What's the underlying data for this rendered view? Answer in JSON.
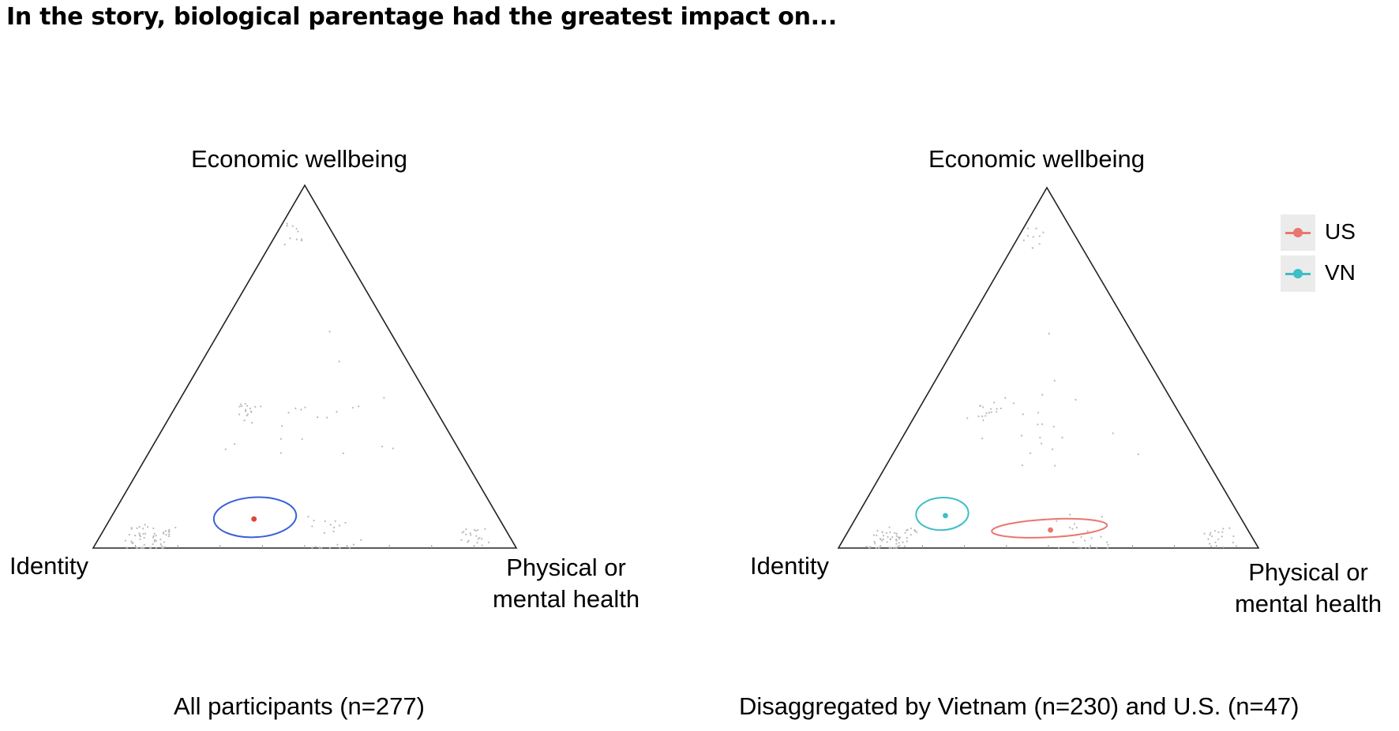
{
  "title": "In the story, biological parentage had the greatest impact on...",
  "chart_data": [
    {
      "type": "scatter",
      "subtype": "ternary",
      "vertices": {
        "top": "Economic wellbeing",
        "left": "Identity",
        "right": [
          "Physical or",
          "mental health"
        ]
      },
      "caption": "All participants (n=277)",
      "legend": null,
      "series": [
        {
          "color": "#3a5fd9",
          "mean": {
            "identity": 0.58,
            "economic": 0.08,
            "health": 0.34
          },
          "confidence_region": {
            "identity": [
              0.7,
              0.45
            ],
            "economic": [
              0.03,
              0.14
            ],
            "health": [
              0.27,
              0.41
            ]
          }
        }
      ],
      "mean_color": "#e0453a",
      "point_color": "#b8b8b8"
    },
    {
      "type": "scatter",
      "subtype": "ternary",
      "vertices": {
        "top": "Economic wellbeing",
        "left": "Identity",
        "right": [
          "Physical or",
          "mental health"
        ]
      },
      "caption": "Disaggregated by Vietnam (n=230) and U.S. (n=47)",
      "legend": {
        "position": "right",
        "entries": [
          "US",
          "VN"
        ]
      },
      "series": [
        {
          "name": "US",
          "color": "#e8776f",
          "mean": {
            "identity": 0.47,
            "economic": 0.05,
            "health": 0.48
          },
          "confidence_region": {
            "identity": [
              0.62,
              0.32
            ],
            "economic": [
              0.03,
              0.08
            ],
            "health": [
              0.35,
              0.6
            ]
          }
        },
        {
          "name": "VN",
          "color": "#3cbfc6",
          "mean": {
            "identity": 0.7,
            "economic": 0.09,
            "health": 0.21
          },
          "confidence_region": {
            "identity": [
              0.79,
              0.62
            ],
            "economic": [
              0.05,
              0.14
            ],
            "health": [
              0.16,
              0.24
            ]
          }
        }
      ],
      "point_color": "#b8b8b8"
    }
  ],
  "legend_labels": {
    "us": "US",
    "vn": "VN"
  },
  "colors": {
    "us": "#e8776f",
    "vn": "#3cbfc6"
  }
}
